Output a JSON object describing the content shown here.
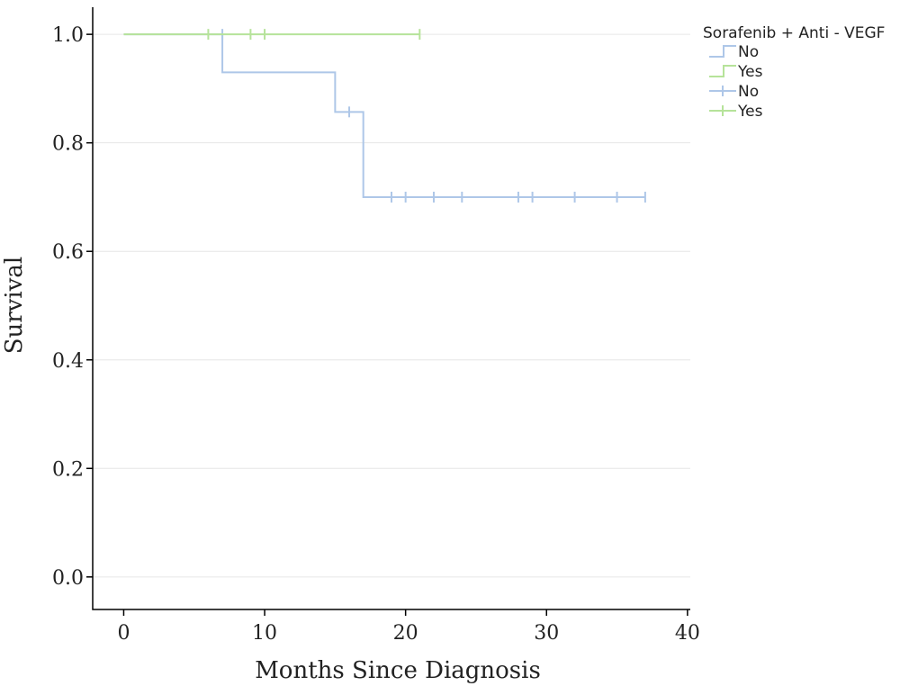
{
  "chart_data": {
    "type": "line",
    "subtype": "kaplan-meier",
    "xlabel": "Months Since Diagnosis",
    "ylabel": "Survival",
    "xlim": [
      -2.2,
      40.2
    ],
    "ylim": [
      -0.06,
      1.05
    ],
    "x_ticks": [
      0,
      10,
      20,
      30,
      40
    ],
    "x_tick_labels": [
      "0",
      "10",
      "20",
      "30",
      "40"
    ],
    "y_ticks": [
      0.0,
      0.2,
      0.4,
      0.6,
      0.8,
      1.0
    ],
    "y_tick_labels": [
      "0.0",
      "0.2",
      "0.4",
      "0.6",
      "0.8",
      "1.0"
    ],
    "grid": "horizontal",
    "legend": {
      "title": "Sorafenib + Anti - VEGF",
      "position": "right",
      "entries": [
        {
          "label": "No",
          "kind": "step",
          "series": 0
        },
        {
          "label": "Yes",
          "kind": "step",
          "series": 1
        },
        {
          "label": "No",
          "kind": "censor",
          "series": 0
        },
        {
          "label": "Yes",
          "kind": "censor",
          "series": 1
        }
      ]
    },
    "series": [
      {
        "name": "No",
        "color": "#aec7e8",
        "steps": [
          {
            "x": 0,
            "y": 1.0
          },
          {
            "x": 7,
            "y": 0.93
          },
          {
            "x": 15,
            "y": 0.857
          },
          {
            "x": 17,
            "y": 0.7
          },
          {
            "x": 37,
            "y": 0.7
          }
        ],
        "censored": [
          {
            "x": 7,
            "y": 1.0
          },
          {
            "x": 16,
            "y": 0.857
          },
          {
            "x": 19,
            "y": 0.7
          },
          {
            "x": 20,
            "y": 0.7
          },
          {
            "x": 22,
            "y": 0.7
          },
          {
            "x": 24,
            "y": 0.7
          },
          {
            "x": 28,
            "y": 0.7
          },
          {
            "x": 29,
            "y": 0.7
          },
          {
            "x": 32,
            "y": 0.7
          },
          {
            "x": 35,
            "y": 0.7
          },
          {
            "x": 37,
            "y": 0.7
          }
        ]
      },
      {
        "name": "Yes",
        "color": "#b6e39a",
        "steps": [
          {
            "x": 0,
            "y": 1.0
          },
          {
            "x": 21,
            "y": 1.0
          }
        ],
        "censored": [
          {
            "x": 6,
            "y": 1.0
          },
          {
            "x": 9,
            "y": 1.0
          },
          {
            "x": 10,
            "y": 1.0
          },
          {
            "x": 21,
            "y": 1.0
          }
        ]
      }
    ]
  }
}
